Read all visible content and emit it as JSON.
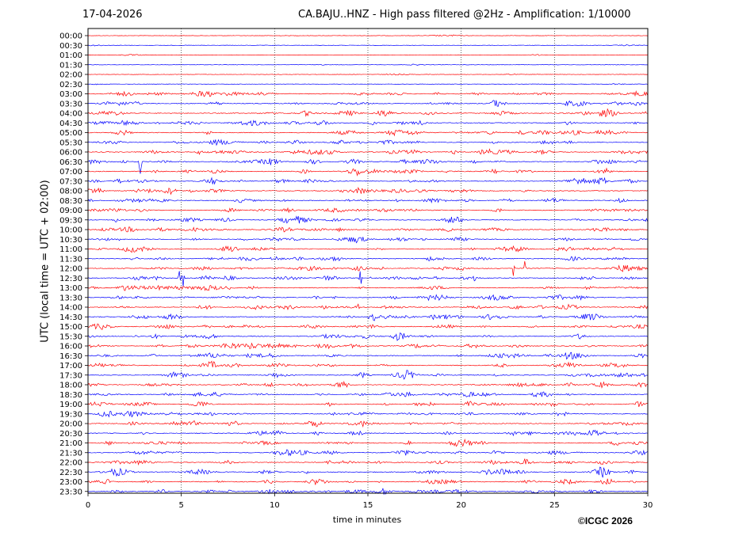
{
  "header": {
    "date": "17-04-2026",
    "title": "CA.BAJU..HNZ - High pass filtered @2Hz - Amplification: 1/10000"
  },
  "footer": {
    "copyright": "©ICGC 2026"
  },
  "chart_data": {
    "type": "line",
    "title": "CA.BAJU..HNZ - High pass filtered @2Hz - Amplification: 1/10000",
    "xlabel": "time in minutes",
    "ylabel": "UTC (local time = UTC + 02:00)",
    "xlim": [
      0,
      30
    ],
    "xticks": [
      0,
      5,
      10,
      15,
      20,
      25,
      30
    ],
    "vertical_gridlines": [
      5,
      10,
      15,
      20,
      25
    ],
    "row_labels": [
      "00:00",
      "00:30",
      "01:00",
      "01:30",
      "02:00",
      "02:30",
      "03:00",
      "03:30",
      "04:00",
      "04:30",
      "05:00",
      "05:30",
      "06:00",
      "06:30",
      "07:00",
      "07:30",
      "08:00",
      "08:30",
      "09:00",
      "09:30",
      "10:00",
      "10:30",
      "11:00",
      "11:30",
      "12:00",
      "12:30",
      "13:00",
      "13:30",
      "14:00",
      "14:30",
      "15:00",
      "15:30",
      "16:00",
      "16:30",
      "17:00",
      "17:30",
      "18:00",
      "18:30",
      "19:00",
      "19:30",
      "20:00",
      "20:30",
      "21:00",
      "21:30",
      "22:00",
      "22:30",
      "23:00",
      "23:30"
    ],
    "trace_colors": [
      "#ff0000",
      "#0000ff"
    ],
    "events": [
      {
        "row": "06:30",
        "minute": 2.8,
        "amplitude": "large"
      },
      {
        "row": "12:00",
        "minute": 22.8,
        "amplitude": "medium"
      },
      {
        "row": "12:00",
        "minute": 23.4,
        "amplitude": "medium"
      },
      {
        "row": "12:30",
        "minute": 4.9,
        "amplitude": "medium"
      },
      {
        "row": "12:30",
        "minute": 5.1,
        "amplitude": "medium"
      },
      {
        "row": "12:30",
        "minute": 14.6,
        "amplitude": "medium"
      },
      {
        "row": "12:30",
        "minute": 15.2,
        "amplitude": "medium"
      },
      {
        "row": "12:30",
        "minute": 20.7,
        "amplitude": "small"
      },
      {
        "row": "13:30",
        "minute": 18.3,
        "amplitude": "small"
      },
      {
        "row": "14:00",
        "minute": 14.5,
        "amplitude": "small"
      },
      {
        "row": "14:30",
        "minute": 15.1,
        "amplitude": "medium"
      },
      {
        "row": "14:30",
        "minute": 15.3,
        "amplitude": "medium"
      }
    ]
  }
}
